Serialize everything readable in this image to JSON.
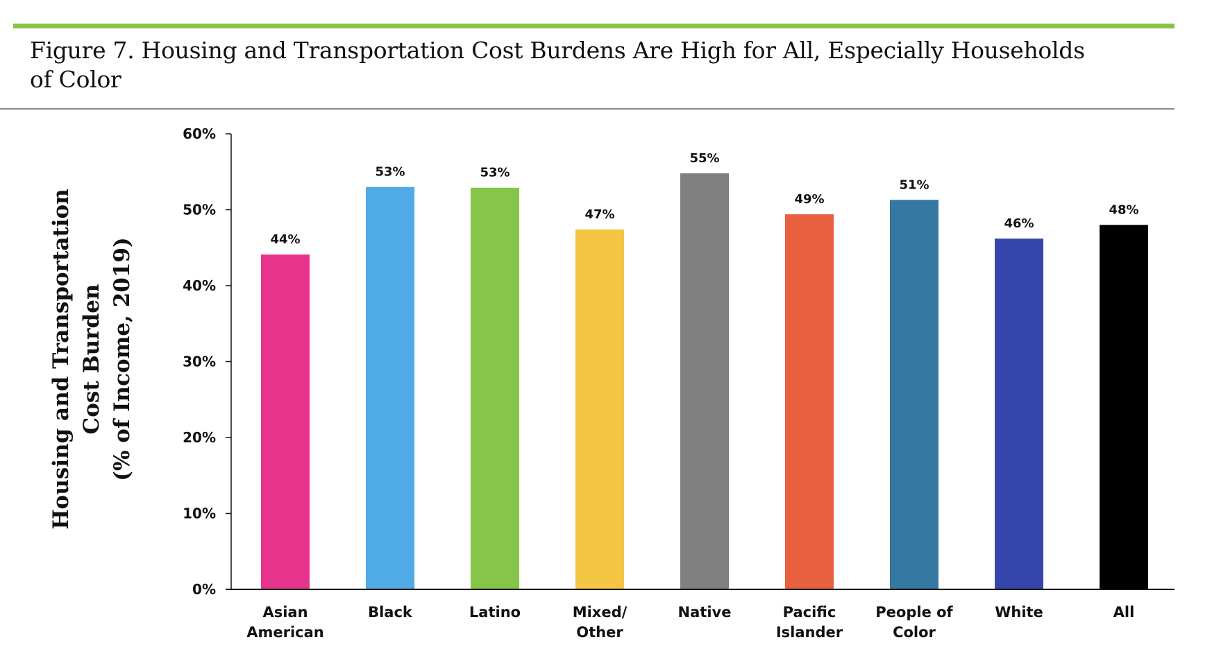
{
  "header": {
    "accent_color": "#8BC34A",
    "title_line1": "Figure 7. Housing and Transportation Cost Burdens Are High for All, Especially Households",
    "title_line2": "of Color"
  },
  "chart_data": {
    "type": "bar",
    "title": "Figure 7. Housing and Transportation Cost Burdens Are High for All, Especially Households of Color",
    "xlabel": "",
    "ylabel": [
      "Housing and Transportation",
      "Cost Burden",
      "(% of Income, 2019)"
    ],
    "ylim": [
      0,
      60
    ],
    "yticks": [
      0,
      10,
      20,
      30,
      40,
      50,
      60
    ],
    "ytick_labels": [
      "0%",
      "10%",
      "20%",
      "30%",
      "40%",
      "50%",
      "60%"
    ],
    "grid": false,
    "legend": "none",
    "categories": [
      [
        "Asian",
        "American"
      ],
      [
        "Black"
      ],
      [
        "Latino"
      ],
      [
        "Mixed/",
        "Other"
      ],
      [
        "Native"
      ],
      [
        "Pacific",
        "Islander"
      ],
      [
        "People of",
        "Color"
      ],
      [
        "White"
      ],
      [
        "All"
      ]
    ],
    "values": [
      44.1,
      53.0,
      52.9,
      47.4,
      54.8,
      49.4,
      51.3,
      46.2,
      48.0
    ],
    "data_labels": [
      "44%",
      "53%",
      "53%",
      "47%",
      "55%",
      "49%",
      "51%",
      "46%",
      "48%"
    ],
    "colors": [
      "#E8338D",
      "#4FAAE6",
      "#86C54A",
      "#F5C644",
      "#808080",
      "#E96041",
      "#3578A1",
      "#3645AE",
      "#000000"
    ]
  }
}
